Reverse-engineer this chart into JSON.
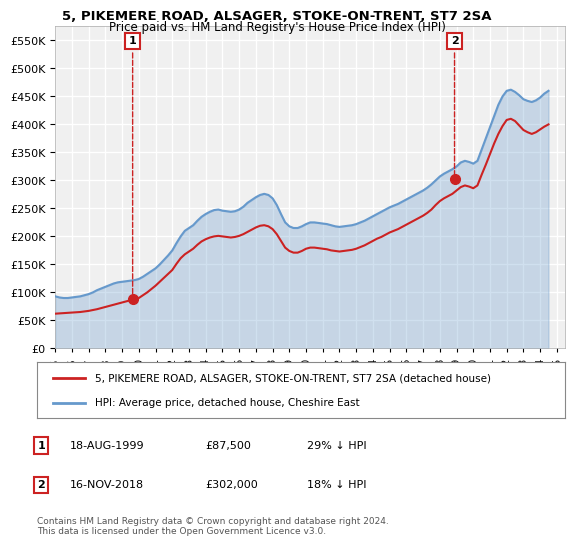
{
  "title": "5, PIKEMERE ROAD, ALSAGER, STOKE-ON-TRENT, ST7 2SA",
  "subtitle": "Price paid vs. HM Land Registry's House Price Index (HPI)",
  "ylabel": "",
  "xlabel": "",
  "background_color": "#ffffff",
  "plot_bg_color": "#f0f0f0",
  "grid_color": "#ffffff",
  "hpi_color": "#6699cc",
  "price_color": "#cc2222",
  "yticks": [
    0,
    50000,
    100000,
    150000,
    200000,
    250000,
    300000,
    350000,
    400000,
    450000,
    500000,
    550000
  ],
  "ylim": [
    0,
    575000
  ],
  "xlim_start": 1995.0,
  "xlim_end": 2025.5,
  "sale1_date": 1999.63,
  "sale1_price": 87500,
  "sale2_date": 2018.88,
  "sale2_price": 302000,
  "legend_label1": "5, PIKEMERE ROAD, ALSAGER, STOKE-ON-TRENT, ST7 2SA (detached house)",
  "legend_label2": "HPI: Average price, detached house, Cheshire East",
  "annotation1_label": "1",
  "annotation2_label": "2",
  "info1": "18-AUG-1999        £87,500        29% ↓ HPI",
  "info2": "16-NOV-2018        £302,000        18% ↓ HPI",
  "footer": "Contains HM Land Registry data © Crown copyright and database right 2024.\nThis data is licensed under the Open Government Licence v3.0.",
  "hpi_data_x": [
    1995.0,
    1995.25,
    1995.5,
    1995.75,
    1996.0,
    1996.25,
    1996.5,
    1996.75,
    1997.0,
    1997.25,
    1997.5,
    1997.75,
    1998.0,
    1998.25,
    1998.5,
    1998.75,
    1999.0,
    1999.25,
    1999.5,
    1999.75,
    2000.0,
    2000.25,
    2000.5,
    2000.75,
    2001.0,
    2001.25,
    2001.5,
    2001.75,
    2002.0,
    2002.25,
    2002.5,
    2002.75,
    2003.0,
    2003.25,
    2003.5,
    2003.75,
    2004.0,
    2004.25,
    2004.5,
    2004.75,
    2005.0,
    2005.25,
    2005.5,
    2005.75,
    2006.0,
    2006.25,
    2006.5,
    2006.75,
    2007.0,
    2007.25,
    2007.5,
    2007.75,
    2008.0,
    2008.25,
    2008.5,
    2008.75,
    2009.0,
    2009.25,
    2009.5,
    2009.75,
    2010.0,
    2010.25,
    2010.5,
    2010.75,
    2011.0,
    2011.25,
    2011.5,
    2011.75,
    2012.0,
    2012.25,
    2012.5,
    2012.75,
    2013.0,
    2013.25,
    2013.5,
    2013.75,
    2014.0,
    2014.25,
    2014.5,
    2014.75,
    2015.0,
    2015.25,
    2015.5,
    2015.75,
    2016.0,
    2016.25,
    2016.5,
    2016.75,
    2017.0,
    2017.25,
    2017.5,
    2017.75,
    2018.0,
    2018.25,
    2018.5,
    2018.75,
    2019.0,
    2019.25,
    2019.5,
    2019.75,
    2020.0,
    2020.25,
    2020.5,
    2020.75,
    2021.0,
    2021.25,
    2021.5,
    2021.75,
    2022.0,
    2022.25,
    2022.5,
    2022.75,
    2023.0,
    2023.25,
    2023.5,
    2023.75,
    2024.0,
    2024.25,
    2024.5
  ],
  "hpi_data_y": [
    93000,
    91000,
    90000,
    90000,
    91000,
    92000,
    93000,
    95000,
    97000,
    100000,
    104000,
    107000,
    110000,
    113000,
    116000,
    118000,
    119000,
    120000,
    121000,
    122000,
    124000,
    128000,
    133000,
    138000,
    143000,
    150000,
    158000,
    166000,
    175000,
    188000,
    200000,
    210000,
    215000,
    220000,
    228000,
    235000,
    240000,
    244000,
    247000,
    248000,
    246000,
    245000,
    244000,
    245000,
    248000,
    253000,
    260000,
    265000,
    270000,
    274000,
    276000,
    274000,
    268000,
    256000,
    240000,
    225000,
    218000,
    215000,
    215000,
    218000,
    222000,
    225000,
    225000,
    224000,
    223000,
    222000,
    220000,
    218000,
    217000,
    218000,
    219000,
    220000,
    222000,
    225000,
    228000,
    232000,
    236000,
    240000,
    244000,
    248000,
    252000,
    255000,
    258000,
    262000,
    266000,
    270000,
    274000,
    278000,
    282000,
    287000,
    293000,
    300000,
    307000,
    312000,
    316000,
    320000,
    325000,
    332000,
    335000,
    333000,
    330000,
    335000,
    355000,
    375000,
    395000,
    415000,
    435000,
    450000,
    460000,
    462000,
    458000,
    452000,
    445000,
    442000,
    440000,
    443000,
    448000,
    455000,
    460000
  ],
  "price_data_x": [
    1995.0,
    1995.25,
    1995.5,
    1995.75,
    1996.0,
    1996.25,
    1996.5,
    1996.75,
    1997.0,
    1997.25,
    1997.5,
    1997.75,
    1998.0,
    1998.25,
    1998.5,
    1998.75,
    1999.0,
    1999.25,
    1999.5,
    1999.75,
    2000.0,
    2000.25,
    2000.5,
    2000.75,
    2001.0,
    2001.25,
    2001.5,
    2001.75,
    2002.0,
    2002.25,
    2002.5,
    2002.75,
    2003.0,
    2003.25,
    2003.5,
    2003.75,
    2004.0,
    2004.25,
    2004.5,
    2004.75,
    2005.0,
    2005.25,
    2005.5,
    2005.75,
    2006.0,
    2006.25,
    2006.5,
    2006.75,
    2007.0,
    2007.25,
    2007.5,
    2007.75,
    2008.0,
    2008.25,
    2008.5,
    2008.75,
    2009.0,
    2009.25,
    2009.5,
    2009.75,
    2010.0,
    2010.25,
    2010.5,
    2010.75,
    2011.0,
    2011.25,
    2011.5,
    2011.75,
    2012.0,
    2012.25,
    2012.5,
    2012.75,
    2013.0,
    2013.25,
    2013.5,
    2013.75,
    2014.0,
    2014.25,
    2014.5,
    2014.75,
    2015.0,
    2015.25,
    2015.5,
    2015.75,
    2016.0,
    2016.25,
    2016.5,
    2016.75,
    2017.0,
    2017.25,
    2017.5,
    2017.75,
    2018.0,
    2018.25,
    2018.5,
    2018.75,
    2019.0,
    2019.25,
    2019.5,
    2019.75,
    2020.0,
    2020.25,
    2020.5,
    2020.75,
    2021.0,
    2021.25,
    2021.5,
    2021.75,
    2022.0,
    2022.25,
    2022.5,
    2022.75,
    2023.0,
    2023.25,
    2023.5,
    2023.75,
    2024.0,
    2024.25,
    2024.5
  ],
  "price_data_y": [
    62000,
    62500,
    63000,
    63500,
    64000,
    64500,
    65000,
    66000,
    67000,
    68500,
    70000,
    72000,
    74000,
    76000,
    78000,
    80000,
    82000,
    84000,
    86000,
    87500,
    90000,
    95000,
    100000,
    106000,
    112000,
    119000,
    126000,
    133000,
    140000,
    151000,
    161000,
    168000,
    173000,
    178000,
    185000,
    191000,
    195000,
    198000,
    200000,
    201000,
    200000,
    199000,
    198000,
    199000,
    201000,
    204000,
    208000,
    212000,
    216000,
    219000,
    220000,
    218000,
    213000,
    204000,
    192000,
    180000,
    174000,
    171000,
    171000,
    174000,
    178000,
    180000,
    180000,
    179000,
    178000,
    177000,
    175000,
    174000,
    173000,
    174000,
    175000,
    176000,
    178000,
    181000,
    184000,
    188000,
    192000,
    196000,
    199000,
    203000,
    207000,
    210000,
    213000,
    217000,
    221000,
    225000,
    229000,
    233000,
    237000,
    242000,
    248000,
    256000,
    263000,
    268000,
    272000,
    276000,
    282000,
    288000,
    291000,
    289000,
    286000,
    291000,
    310000,
    328000,
    347000,
    366000,
    383000,
    397000,
    408000,
    410000,
    406000,
    398000,
    390000,
    386000,
    383000,
    386000,
    391000,
    396000,
    400000
  ],
  "xtick_years": [
    1995,
    1996,
    1997,
    1998,
    1999,
    2000,
    2001,
    2002,
    2003,
    2004,
    2005,
    2006,
    2007,
    2008,
    2009,
    2010,
    2011,
    2012,
    2013,
    2014,
    2015,
    2016,
    2017,
    2018,
    2019,
    2020,
    2021,
    2022,
    2023,
    2024,
    2025
  ]
}
